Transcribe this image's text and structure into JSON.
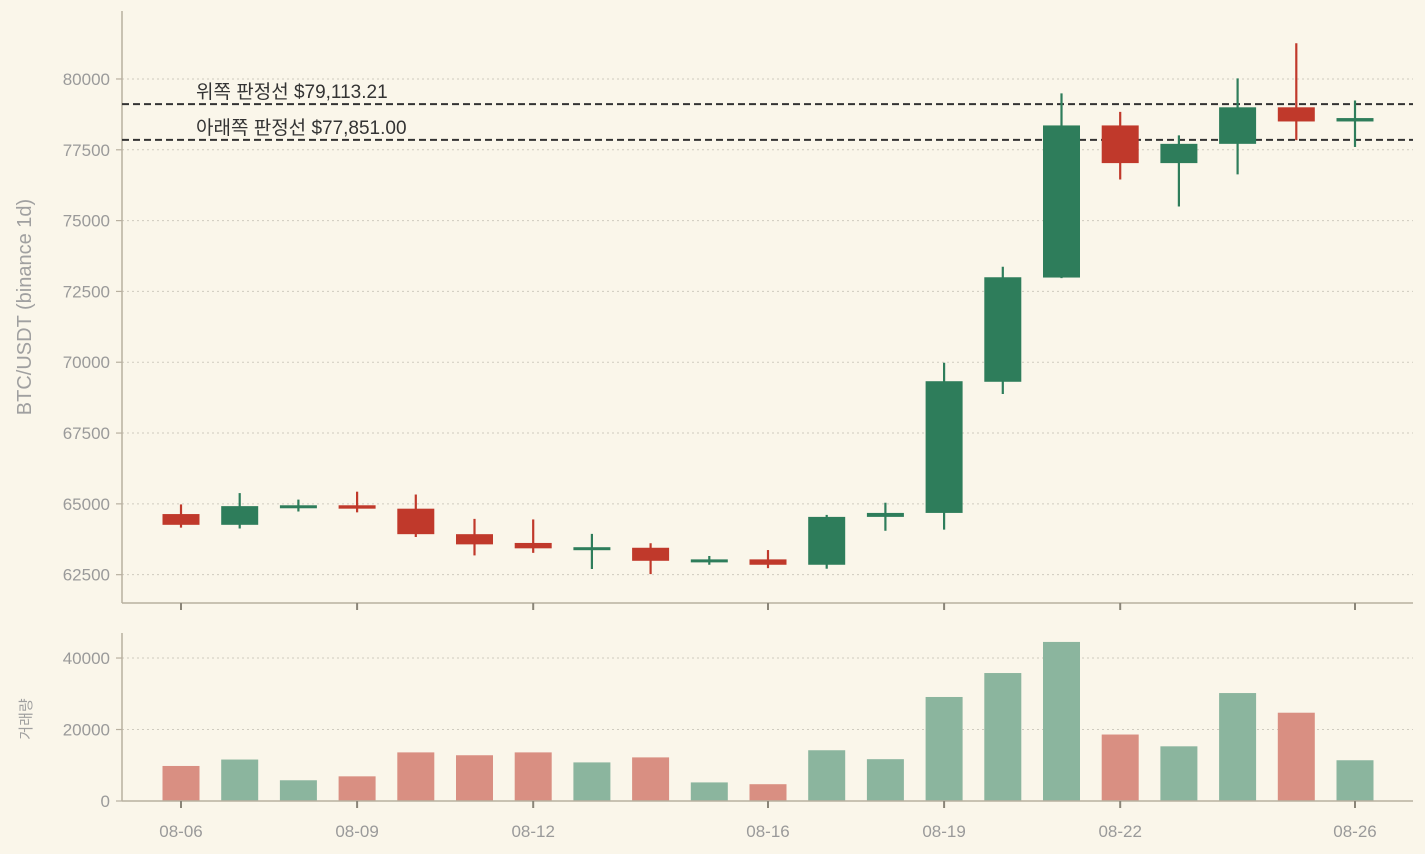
{
  "chart_data": [
    {
      "type": "candlestick",
      "ylabel": "BTC/USDT (binance 1d)",
      "ylim": [
        61500,
        82400
      ],
      "yticks": [
        62500,
        65000,
        67500,
        70000,
        72500,
        75000,
        77500,
        80000
      ],
      "grid": "horizontal-dotted",
      "colors": {
        "up": "#2e7d5b",
        "down": "#c0392b",
        "level_line": "#333333"
      },
      "levels": [
        {
          "value": 79113.21,
          "label": "위쪽 판정선 $79,113.21"
        },
        {
          "value": 77851.0,
          "label": "아래쪽 판정선 $77,851.00"
        }
      ],
      "candles": [
        {
          "date": "08-06",
          "open": 64640,
          "high": 64980,
          "low": 64160,
          "close": 64260
        },
        {
          "date": "08-07",
          "open": 64260,
          "high": 65380,
          "low": 64130,
          "close": 64920
        },
        {
          "date": "08-08",
          "open": 64880,
          "high": 65150,
          "low": 64730,
          "close": 64950
        },
        {
          "date": "08-09",
          "open": 64950,
          "high": 65430,
          "low": 64700,
          "close": 64830
        },
        {
          "date": "08-10",
          "open": 64830,
          "high": 65330,
          "low": 63830,
          "close": 63930
        },
        {
          "date": "08-11",
          "open": 63930,
          "high": 64470,
          "low": 63180,
          "close": 63570
        },
        {
          "date": "08-12",
          "open": 63620,
          "high": 64450,
          "low": 63270,
          "close": 63430
        },
        {
          "date": "08-13",
          "open": 63460,
          "high": 63940,
          "low": 62700,
          "close": 63470
        },
        {
          "date": "08-14",
          "open": 63450,
          "high": 63610,
          "low": 62520,
          "close": 62990
        },
        {
          "date": "08-15",
          "open": 62990,
          "high": 63160,
          "low": 62850,
          "close": 63040
        },
        {
          "date": "08-16",
          "open": 63040,
          "high": 63370,
          "low": 62730,
          "close": 62850
        },
        {
          "date": "08-17",
          "open": 62850,
          "high": 64610,
          "low": 62710,
          "close": 64540
        },
        {
          "date": "08-18",
          "open": 64540,
          "high": 65040,
          "low": 64050,
          "close": 64680
        },
        {
          "date": "08-19",
          "open": 64680,
          "high": 69980,
          "low": 64090,
          "close": 69330
        },
        {
          "date": "08-20",
          "open": 69310,
          "high": 73370,
          "low": 68880,
          "close": 73000
        },
        {
          "date": "08-21",
          "open": 72990,
          "high": 79490,
          "low": 72970,
          "close": 78360
        },
        {
          "date": "08-22",
          "open": 78360,
          "high": 78840,
          "low": 76450,
          "close": 77030
        },
        {
          "date": "08-23",
          "open": 77030,
          "high": 78010,
          "low": 75500,
          "close": 77710
        },
        {
          "date": "08-24",
          "open": 77710,
          "high": 80020,
          "low": 76630,
          "close": 79000
        },
        {
          "date": "08-25",
          "open": 79000,
          "high": 81260,
          "low": 77840,
          "close": 78500
        },
        {
          "date": "08-26",
          "open": 78500,
          "high": 79240,
          "low": 77600,
          "close": 78620
        }
      ]
    },
    {
      "type": "bar",
      "ylabel": "거래량",
      "ylim": [
        0,
        47000
      ],
      "yticks": [
        0,
        20000,
        40000
      ],
      "grid": "horizontal-dotted",
      "colors": {
        "up": "#8bb59e",
        "down": "#d98f82"
      },
      "xticks": [
        "08-06",
        "08-09",
        "08-12",
        "08-16",
        "08-19",
        "08-22",
        "08-26"
      ],
      "categories": [
        "08-06",
        "08-07",
        "08-08",
        "08-09",
        "08-10",
        "08-11",
        "08-12",
        "08-13",
        "08-14",
        "08-15",
        "08-16",
        "08-17",
        "08-18",
        "08-19",
        "08-20",
        "08-21",
        "08-22",
        "08-23",
        "08-24",
        "08-25",
        "08-26"
      ],
      "values": [
        9800,
        11600,
        5800,
        6900,
        13600,
        12800,
        13600,
        10800,
        12200,
        5200,
        4700,
        14200,
        11700,
        29100,
        35800,
        44500,
        18600,
        15300,
        30200,
        24700,
        11400
      ]
    }
  ]
}
